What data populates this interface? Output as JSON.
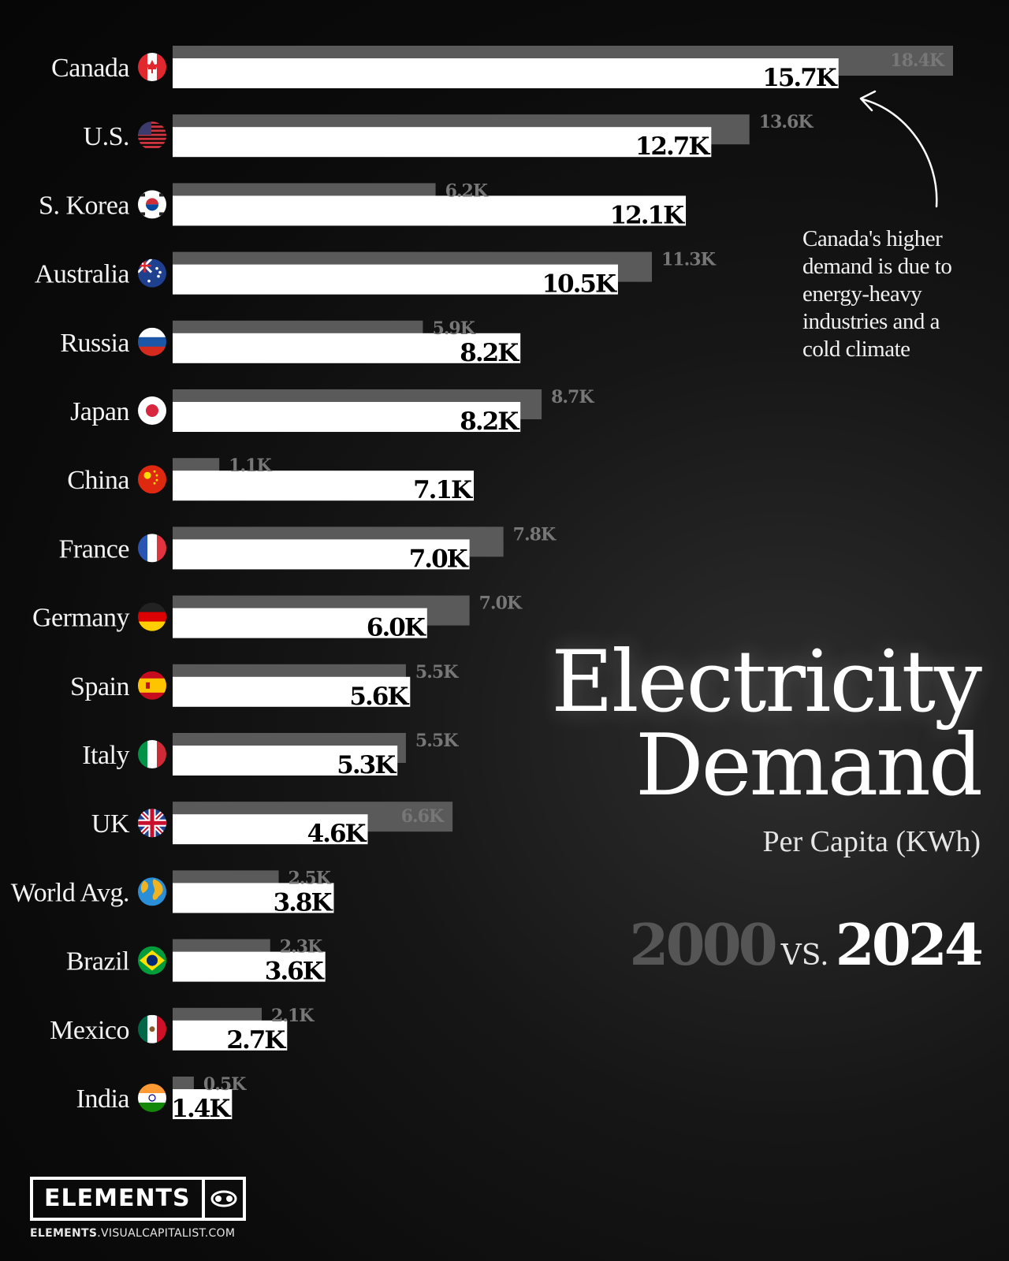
{
  "chart_data": {
    "type": "bar",
    "orientation": "horizontal",
    "categories": [
      "Canada",
      "U.S.",
      "S. Korea",
      "Australia",
      "Russia",
      "Japan",
      "China",
      "France",
      "Germany",
      "Spain",
      "Italy",
      "UK",
      "World Avg.",
      "Brazil",
      "Mexico",
      "India"
    ],
    "series": [
      {
        "name": "2000",
        "values": [
          18.4,
          13.6,
          6.2,
          11.3,
          5.9,
          8.7,
          1.1,
          7.8,
          7.0,
          5.5,
          5.5,
          6.6,
          2.5,
          2.3,
          2.1,
          0.5
        ],
        "labels": [
          "18.4K",
          "13.6K",
          "6.2K",
          "11.3K",
          "5.9K",
          "8.7K",
          "1.1K",
          "7.8K",
          "7.0K",
          "5.5K",
          "5.5K",
          "6.6K",
          "2.5K",
          "2.3K",
          "2.1K",
          "0.5K"
        ],
        "color": "#5a5a5a"
      },
      {
        "name": "2024",
        "values": [
          15.7,
          12.7,
          12.1,
          10.5,
          8.2,
          8.2,
          7.1,
          7.0,
          6.0,
          5.6,
          5.3,
          4.6,
          3.8,
          3.6,
          2.7,
          1.4
        ],
        "labels": [
          "15.7K",
          "12.7K",
          "12.1K",
          "10.5K",
          "8.2K",
          "8.2K",
          "7.1K",
          "7.0K",
          "6.0K",
          "5.6K",
          "5.3K",
          "4.6K",
          "3.8K",
          "3.6K",
          "2.7K",
          "1.4K"
        ],
        "color": "#ffffff"
      }
    ],
    "flags": [
      "canada-flag-icon",
      "us-flag-icon",
      "south-korea-flag-icon",
      "australia-flag-icon",
      "russia-flag-icon",
      "japan-flag-icon",
      "china-flag-icon",
      "france-flag-icon",
      "germany-flag-icon",
      "spain-flag-icon",
      "italy-flag-icon",
      "uk-flag-icon",
      "globe-icon",
      "brazil-flag-icon",
      "mexico-flag-icon",
      "india-flag-icon"
    ],
    "xlim": [
      0,
      18.4
    ],
    "grid": false,
    "legend": "none"
  },
  "annotation": {
    "lines": [
      "Canada's higher",
      "demand is due to",
      "energy-heavy",
      "industries and a",
      "cold climate"
    ]
  },
  "title": {
    "line1": "Electricity",
    "line2": "Demand",
    "subtitle": "Per Capita (KWh)",
    "year_old": "2000",
    "vs": "VS.",
    "year_new": "2024"
  },
  "branding": {
    "logo_text": "ELEMENTS",
    "url_bold": "ELEMENTS",
    "url_rest": ".VISUALCAPITALIST.COM"
  },
  "colors": {
    "background": "#0b0b0b",
    "bar_2024": "#ffffff",
    "bar_2000": "#5a5a5a",
    "label_2000": "#777777"
  }
}
